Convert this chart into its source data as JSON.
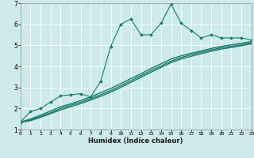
{
  "xlabel": "Humidex (Indice chaleur)",
  "xlim": [
    0,
    23
  ],
  "ylim": [
    1,
    7
  ],
  "xticks": [
    0,
    1,
    2,
    3,
    4,
    5,
    6,
    7,
    8,
    9,
    10,
    11,
    12,
    13,
    14,
    15,
    16,
    17,
    18,
    19,
    20,
    21,
    22,
    23
  ],
  "yticks": [
    1,
    2,
    3,
    4,
    5,
    6,
    7
  ],
  "bg_color": "#ceeaea",
  "line_color": "#1a7a6e",
  "grid_color": "#b0d8d8",
  "lines": [
    {
      "x": [
        0,
        1,
        2,
        3,
        4,
        5,
        6,
        7,
        8,
        9,
        10,
        11,
        12,
        13,
        14,
        15,
        16,
        17,
        18,
        19,
        20,
        21,
        22,
        23
      ],
      "y": [
        1.35,
        1.85,
        2.0,
        2.3,
        2.6,
        2.65,
        2.7,
        2.55,
        3.3,
        4.95,
        6.0,
        6.25,
        5.5,
        5.5,
        6.05,
        6.95,
        6.05,
        5.7,
        5.35,
        5.5,
        5.35,
        5.35,
        5.35,
        5.25
      ],
      "marker": "D",
      "markersize": 2.0,
      "linewidth": 0.8
    },
    {
      "x": [
        0,
        1,
        2,
        3,
        4,
        5,
        6,
        7,
        8,
        9,
        10,
        11,
        12,
        13,
        14,
        15,
        16,
        17,
        18,
        19,
        20,
        21,
        22,
        23
      ],
      "y": [
        1.35,
        1.5,
        1.68,
        1.88,
        2.08,
        2.22,
        2.38,
        2.55,
        2.75,
        2.95,
        3.18,
        3.42,
        3.65,
        3.9,
        4.12,
        4.35,
        4.5,
        4.62,
        4.73,
        4.85,
        4.95,
        5.02,
        5.1,
        5.18
      ],
      "marker": null,
      "linewidth": 1.0
    },
    {
      "x": [
        0,
        1,
        2,
        3,
        4,
        5,
        6,
        7,
        8,
        9,
        10,
        11,
        12,
        13,
        14,
        15,
        16,
        17,
        18,
        19,
        20,
        21,
        22,
        23
      ],
      "y": [
        1.35,
        1.45,
        1.62,
        1.8,
        2.0,
        2.15,
        2.3,
        2.47,
        2.65,
        2.85,
        3.08,
        3.32,
        3.56,
        3.8,
        4.02,
        4.25,
        4.42,
        4.55,
        4.67,
        4.78,
        4.88,
        4.95,
        5.03,
        5.12
      ],
      "marker": null,
      "linewidth": 1.0
    },
    {
      "x": [
        0,
        1,
        2,
        3,
        4,
        5,
        6,
        7,
        8,
        9,
        10,
        11,
        12,
        13,
        14,
        15,
        16,
        17,
        18,
        19,
        20,
        21,
        22,
        23
      ],
      "y": [
        1.35,
        1.42,
        1.58,
        1.75,
        1.93,
        2.08,
        2.23,
        2.4,
        2.58,
        2.78,
        3.0,
        3.24,
        3.48,
        3.72,
        3.95,
        4.18,
        4.35,
        4.48,
        4.6,
        4.72,
        4.82,
        4.9,
        4.98,
        5.07
      ],
      "marker": null,
      "linewidth": 1.0
    }
  ]
}
